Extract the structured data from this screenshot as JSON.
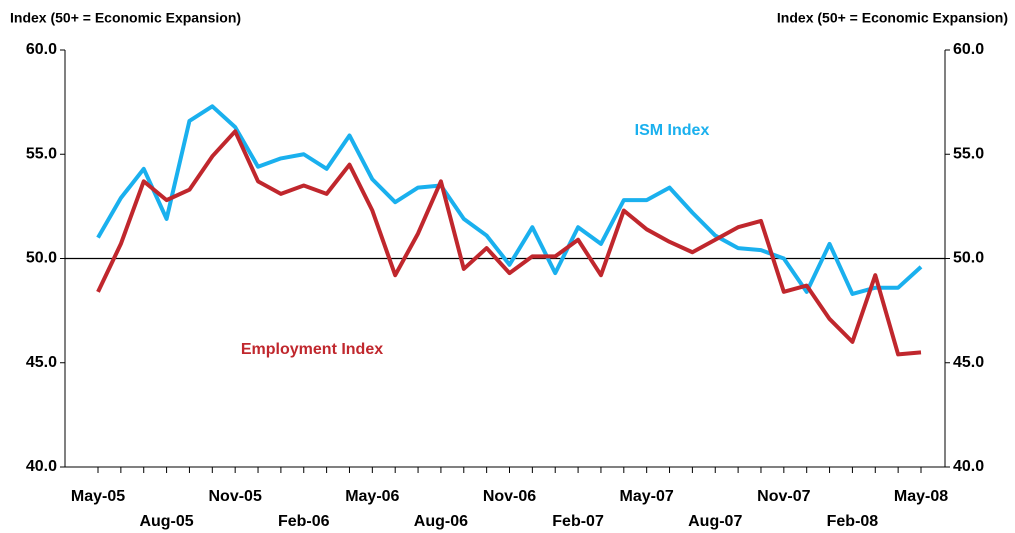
{
  "chart_data": {
    "type": "line",
    "y_label": "Index (50+ = Economic Expansion)",
    "y2_label": "Index (50+ = Economic Expansion)",
    "categories": [
      "May-05",
      null,
      null,
      "Aug-05",
      null,
      null,
      "Nov-05",
      null,
      null,
      "Feb-06",
      null,
      null,
      "May-06",
      null,
      null,
      "Aug-06",
      null,
      null,
      "Nov-06",
      null,
      null,
      "Feb-07",
      null,
      null,
      "May-07",
      null,
      null,
      "Aug-07",
      null,
      null,
      "Nov-07",
      null,
      null,
      "Feb-08",
      null,
      null,
      "May-08"
    ],
    "series": [
      {
        "name": "ISM Index",
        "color": "#1ab0ee",
        "values": [
          51.0,
          52.9,
          54.3,
          51.9,
          56.6,
          57.3,
          56.3,
          54.4,
          54.8,
          55.0,
          54.3,
          55.9,
          53.8,
          52.7,
          53.4,
          53.5,
          51.9,
          51.1,
          49.7,
          51.5,
          49.3,
          51.5,
          50.7,
          52.8,
          52.8,
          53.4,
          52.2,
          51.1,
          50.5,
          50.4,
          50.0,
          48.4,
          50.7,
          48.3,
          48.6,
          48.6,
          49.6
        ]
      },
      {
        "name": "Employment Index",
        "color": "#c0272d",
        "values": [
          48.4,
          50.7,
          53.7,
          52.8,
          53.3,
          54.9,
          56.1,
          53.7,
          53.1,
          53.5,
          53.1,
          54.5,
          52.3,
          49.2,
          51.2,
          53.7,
          49.5,
          50.5,
          49.3,
          50.1,
          50.1,
          50.9,
          49.2,
          52.3,
          51.4,
          50.8,
          50.3,
          50.9,
          51.5,
          51.8,
          48.4,
          48.7,
          47.1,
          46.0,
          49.2,
          45.4,
          45.5
        ]
      }
    ],
    "ylim": [
      40,
      60
    ],
    "yticks": [
      {
        "value": 40,
        "label": "40.0"
      },
      {
        "value": 45,
        "label": "45.0"
      },
      {
        "value": 50,
        "label": "50.0"
      },
      {
        "value": 55,
        "label": "55.0"
      },
      {
        "value": 60,
        "label": "60.0"
      }
    ],
    "y2lim": [
      40,
      60
    ],
    "y2ticks": [
      {
        "value": 40,
        "label": "40.0"
      },
      {
        "value": 45,
        "label": "45.0"
      },
      {
        "value": 50,
        "label": "50.0"
      },
      {
        "value": 55,
        "label": "55.0"
      },
      {
        "value": 60,
        "label": "60.0"
      }
    ],
    "reference_line": 50
  }
}
